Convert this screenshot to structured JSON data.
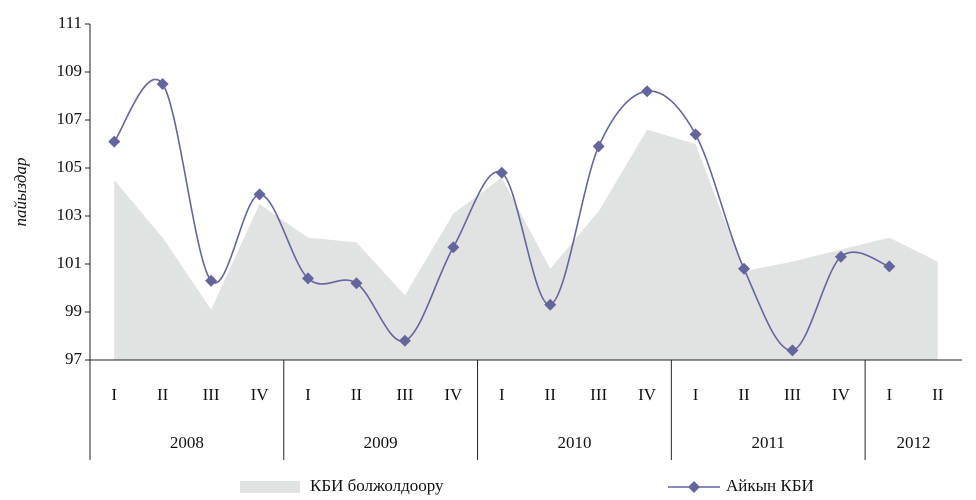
{
  "chart_data": {
    "type": "area-line",
    "y_label": "пайыздар",
    "categories": [
      "I",
      "II",
      "III",
      "IV",
      "I",
      "II",
      "III",
      "IV",
      "I",
      "II",
      "III",
      "IV",
      "I",
      "II",
      "III",
      "IV",
      "I",
      "II"
    ],
    "year_groups": [
      {
        "name": "2008",
        "count": 4
      },
      {
        "name": "2009",
        "count": 4
      },
      {
        "name": "2010",
        "count": 4
      },
      {
        "name": "2011",
        "count": 4
      },
      {
        "name": "2012",
        "count": 2
      }
    ],
    "series": [
      {
        "name": "КБИ болжолдоору",
        "kind": "area",
        "color": "#e1e2e2",
        "values": [
          104.5,
          102.1,
          99.1,
          103.5,
          102.1,
          101.9,
          99.7,
          103.1,
          104.6,
          100.8,
          103.2,
          106.6,
          106.0,
          100.7,
          101.1,
          101.6,
          102.1,
          101.1
        ]
      },
      {
        "name": "Айкын КБИ",
        "kind": "line",
        "color": "#65659e",
        "values": [
          106.1,
          108.5,
          100.3,
          103.9,
          100.4,
          100.2,
          97.8,
          101.7,
          104.8,
          99.3,
          105.9,
          108.2,
          106.4,
          100.8,
          97.4,
          101.3,
          100.9,
          null
        ]
      }
    ],
    "ylim": [
      97,
      111
    ],
    "yticks": [
      97,
      99,
      101,
      103,
      105,
      107,
      109,
      111
    ]
  }
}
